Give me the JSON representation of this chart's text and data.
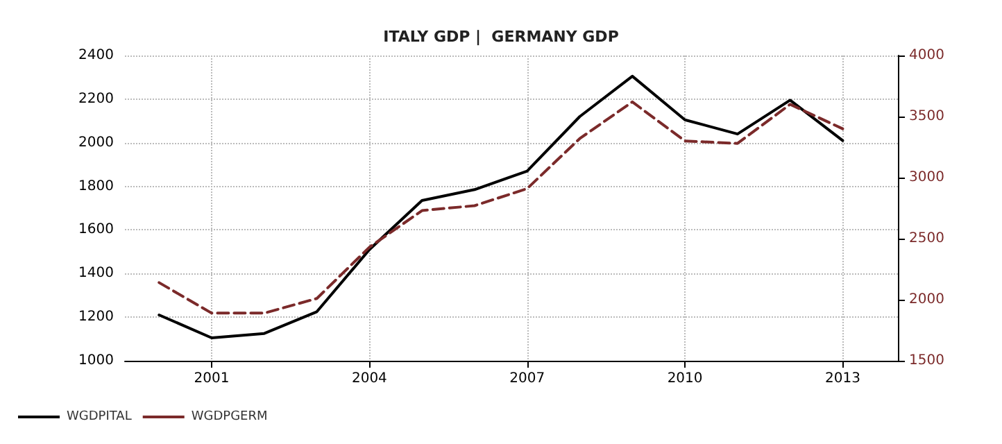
{
  "chart_data": {
    "type": "line",
    "title": "ITALY GDP |  GERMANY GDP",
    "x": [
      2000,
      2001,
      2002,
      2003,
      2004,
      2005,
      2006,
      2007,
      2008,
      2009,
      2010,
      2011,
      2012,
      2013
    ],
    "series": [
      {
        "name": "WGDPITAL",
        "color": "#000000",
        "line_style": "solid",
        "values": [
          1210,
          1105,
          1125,
          1225,
          1510,
          1735,
          1785,
          1870,
          2120,
          2305,
          2105,
          2040,
          2195,
          2010
        ]
      },
      {
        "name": "WGDPGERM",
        "color": "#7b2a2a",
        "line_style": "dashed",
        "axis": "y2",
        "values": [
          2140,
          1890,
          1890,
          2010,
          2430,
          2730,
          2770,
          2910,
          3320,
          3620,
          3300,
          3280,
          3600,
          3400
        ]
      }
    ],
    "xlim": [
      1999.35,
      2014.05
    ],
    "xticks": [
      2001,
      2004,
      2007,
      2010,
      2013
    ],
    "ylim": [
      1000,
      2400
    ],
    "yticks": [
      1000,
      1200,
      1400,
      1600,
      1800,
      2000,
      2200,
      2400
    ],
    "y2lim": [
      1500,
      4000
    ],
    "y2ticks": [
      1500,
      2000,
      2500,
      3000,
      3500,
      4000
    ],
    "grid": true,
    "legend": "bottom left",
    "marker": "none"
  }
}
